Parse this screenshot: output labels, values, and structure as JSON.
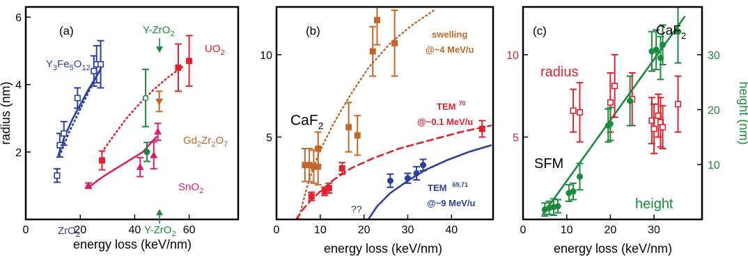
{
  "colors": {
    "blue": "#2b3f9e",
    "red": "#e0222e",
    "orange": "#c0682a",
    "magenta": "#d6226e",
    "green": "#1a8a3c",
    "black": "#000000"
  },
  "chart_data": [
    {
      "type": "scatter",
      "panel_label": "(a)",
      "xlabel": "energy loss (keV/nm)",
      "ylabel": "radius (nm)",
      "xlim": [
        0,
        78
      ],
      "ylim": [
        0,
        6.3
      ],
      "xticks": [
        0,
        20,
        40,
        60
      ],
      "yticks": [
        2,
        4,
        6
      ],
      "annotations": {
        "yig": "Y3Fe5O12",
        "zro2": "ZrO2",
        "yzro2_top": "Y-ZrO2",
        "yzro2_bottom": "Y-ZrO2",
        "uo2": "UO2",
        "gd": "Gd2Zr2O7",
        "sno2": "SnO2"
      },
      "series": [
        {
          "name": "Y3Fe5O12",
          "color": "blue",
          "marker": "open-square",
          "points": [
            [
              12.5,
              2.2,
              0.35
            ],
            [
              14,
              2.55,
              0.35
            ],
            [
              19,
              3.6,
              0.3
            ],
            [
              25,
              4.4,
              0.45
            ],
            [
              26,
              4.6,
              0.55
            ],
            [
              27.5,
              4.6,
              0.7
            ]
          ]
        },
        {
          "name": "ZrO2",
          "color": "blue",
          "marker": "open-square",
          "points": [
            [
              11.5,
              1.3,
              0.2
            ]
          ]
        },
        {
          "name": "Y-ZrO2",
          "color": "green",
          "marker": "open-circle",
          "points": [
            [
              44,
              3.6,
              0.85
            ]
          ]
        },
        {
          "name": "Y-ZrO2",
          "color": "green",
          "marker": "filled-circle",
          "points": [
            [
              44.5,
              2.0,
              0.28
            ]
          ]
        },
        {
          "name": "UO2",
          "color": "red",
          "marker": "filled-square",
          "points": [
            [
              28,
              1.75,
              0.28
            ],
            [
              56,
              4.5,
              0.7
            ],
            [
              60,
              4.7,
              0.75
            ]
          ]
        },
        {
          "name": "Gd2Zr2O7",
          "color": "orange",
          "marker": "filled-triangle-down",
          "points": [
            [
              49,
              3.5,
              0.3
            ]
          ]
        },
        {
          "name": "SnO2",
          "color": "magenta",
          "marker": "filled-triangle-up",
          "points": [
            [
              23,
              1.0,
              0.08
            ],
            [
              42,
              1.55,
              0.28
            ],
            [
              47,
              1.9,
              0.4
            ],
            [
              48.5,
              2.6,
              0.25
            ]
          ]
        }
      ],
      "curves": [
        {
          "color": "blue",
          "style": "solid",
          "points": [
            [
              12,
              1.9
            ],
            [
              14,
              2.4
            ],
            [
              17,
              2.95
            ],
            [
              20,
              3.4
            ],
            [
              23,
              3.85
            ],
            [
              26,
              4.25
            ],
            [
              27.5,
              4.45
            ]
          ]
        },
        {
          "color": "blue",
          "style": "dotted",
          "points": [
            [
              13,
              2.0
            ],
            [
              16,
              2.6
            ],
            [
              19,
              3.1
            ],
            [
              22,
              3.6
            ],
            [
              25,
              4.1
            ],
            [
              28,
              4.55
            ]
          ]
        },
        {
          "color": "red",
          "style": "dotted",
          "points": [
            [
              28,
              2.0
            ],
            [
              32,
              2.45
            ],
            [
              37,
              3.0
            ],
            [
              42,
              3.45
            ],
            [
              47,
              3.85
            ],
            [
              52,
              4.2
            ],
            [
              58,
              4.55
            ]
          ]
        },
        {
          "color": "magenta",
          "style": "solid",
          "points": [
            [
              23,
              0.95
            ],
            [
              28,
              1.25
            ],
            [
              33,
              1.5
            ],
            [
              38,
              1.75
            ],
            [
              43,
              2.0
            ],
            [
              48,
              2.45
            ]
          ]
        }
      ]
    },
    {
      "type": "scatter",
      "panel_label": "(b)",
      "title": "CaF2",
      "xlabel": "energy loss (keV/nm)",
      "ylabel": "",
      "xlim": [
        0,
        49.5
      ],
      "ylim": [
        0,
        12.9
      ],
      "xticks": [
        0,
        10,
        20,
        30,
        40
      ],
      "yticks": [
        5,
        10
      ],
      "annotations": {
        "swelling": "swelling",
        "swelling_energy": "@~4 MeV/u",
        "tem70": "TEM",
        "tem70_ref": "70",
        "tem70_energy": "@~0.1 MeV/u",
        "tem6971": "TEM",
        "tem6971_ref": "69,71",
        "tem6971_energy": "@~9 MeV/u",
        "unknown": "??"
      },
      "series": [
        {
          "name": "swelling",
          "color": "orange",
          "marker": "filled-square",
          "points": [
            [
              6.5,
              3.3,
              1.0
            ],
            [
              7.5,
              3.3,
              1.0
            ],
            [
              8.5,
              3.2,
              1.0
            ],
            [
              9.5,
              3.2,
              1.1
            ],
            [
              9.5,
              4.3,
              1.0
            ],
            [
              16.5,
              5.6,
              1.5
            ],
            [
              18.5,
              5.1,
              1.2
            ],
            [
              22,
              10.2,
              1.5
            ],
            [
              23,
              12.1,
              1.5
            ],
            [
              27,
              10.7,
              2.0
            ]
          ]
        },
        {
          "name": "TEM 70",
          "color": "red",
          "marker": "filled-square",
          "points": [
            [
              8,
              1.4,
              0.25
            ],
            [
              11,
              1.7,
              0.25
            ],
            [
              12,
              1.9,
              0.3
            ],
            [
              15,
              3.1,
              0.35
            ],
            [
              47,
              5.5,
              0.5
            ]
          ]
        },
        {
          "name": "TEM 69,71",
          "color": "blue",
          "marker": "filled-circle",
          "points": [
            [
              26,
              2.35,
              0.4
            ],
            [
              30,
              2.5,
              0.3
            ],
            [
              32,
              2.8,
              0.4
            ],
            [
              33.5,
              3.3,
              0.35
            ]
          ]
        }
      ],
      "curves": [
        {
          "color": "orange",
          "style": "dotted",
          "points": [
            [
              5,
              0
            ],
            [
              6,
              1.0
            ],
            [
              7,
              2.0
            ],
            [
              8.5,
              3.2
            ],
            [
              10,
              4.2
            ],
            [
              13,
              5.8
            ],
            [
              17,
              7.6
            ],
            [
              21,
              9.2
            ],
            [
              26,
              10.7
            ],
            [
              31,
              11.8
            ],
            [
              36,
              12.7
            ]
          ]
        },
        {
          "color": "red",
          "style": "dashed",
          "points": [
            [
              4.5,
              0
            ],
            [
              6,
              0.6
            ],
            [
              8,
              1.2
            ],
            [
              10,
              1.7
            ],
            [
              13,
              2.4
            ],
            [
              17,
              3.1
            ],
            [
              22,
              3.7
            ],
            [
              28,
              4.3
            ],
            [
              35,
              4.8
            ],
            [
              42,
              5.3
            ],
            [
              49,
              5.7
            ]
          ]
        },
        {
          "color": "blue",
          "style": "solid",
          "points": [
            [
              21,
              0
            ],
            [
              23,
              0.8
            ],
            [
              26,
              1.6
            ],
            [
              30,
              2.35
            ],
            [
              34,
              3.0
            ],
            [
              39,
              3.6
            ],
            [
              44,
              4.1
            ],
            [
              49,
              4.5
            ]
          ]
        }
      ]
    },
    {
      "type": "scatter",
      "panel_label": "(c)",
      "title": "CaF2",
      "xlabel": "energy loss (keV/nm)",
      "ylabel": "height (nm)",
      "xlim": [
        0,
        41
      ],
      "ylim": [
        0,
        12.9
      ],
      "right_axis_range": [
        0,
        38.7
      ],
      "xticks": [
        0,
        10,
        20,
        30
      ],
      "yticks": [
        5,
        10
      ],
      "right_yticks": [
        10,
        20,
        30
      ],
      "annotations": {
        "radius": "radius",
        "sfm": "SFM",
        "height": "height"
      },
      "series": [
        {
          "name": "radius",
          "color": "red",
          "marker": "open-square",
          "points": [
            [
              11.5,
              6.6,
              1.3
            ],
            [
              13,
              6.5,
              1.8
            ],
            [
              20,
              7.1,
              1.8
            ],
            [
              21,
              8.1,
              1.9
            ],
            [
              25,
              7.3,
              1.6
            ],
            [
              29.5,
              6.0,
              1.4
            ],
            [
              30,
              5.5,
              1.5
            ],
            [
              31,
              6.3,
              1.3
            ],
            [
              31.5,
              5.9,
              1.5
            ],
            [
              32,
              5.6,
              1.3
            ],
            [
              35.5,
              7.0,
              1.7
            ]
          ]
        },
        {
          "name": "height",
          "color": "green",
          "marker": "filled-circle",
          "points": [
            [
              5,
              0.6,
              0.4
            ],
            [
              6,
              0.7,
              0.4
            ],
            [
              7,
              0.75,
              0.5
            ],
            [
              8,
              0.8,
              0.4
            ],
            [
              10.5,
              1.6,
              0.5
            ],
            [
              11.5,
              1.7,
              0.5
            ],
            [
              13,
              2.6,
              0.8
            ],
            [
              19.5,
              5.7,
              1.0
            ],
            [
              20,
              5.8,
              1.0
            ],
            [
              24.5,
              7.2,
              1.5
            ],
            [
              29.5,
              10.2,
              1.2
            ],
            [
              30.5,
              10.3,
              1.2
            ],
            [
              31.5,
              9.8,
              1.3
            ],
            [
              32,
              10.6,
              1.2
            ],
            [
              35.5,
              11.4,
              1.9
            ]
          ]
        }
      ],
      "curves": [
        {
          "color": "green",
          "style": "solid",
          "axis": "right",
          "points": [
            [
              4.5,
              0.3
            ],
            [
              37,
              12.3
            ]
          ]
        }
      ]
    }
  ]
}
